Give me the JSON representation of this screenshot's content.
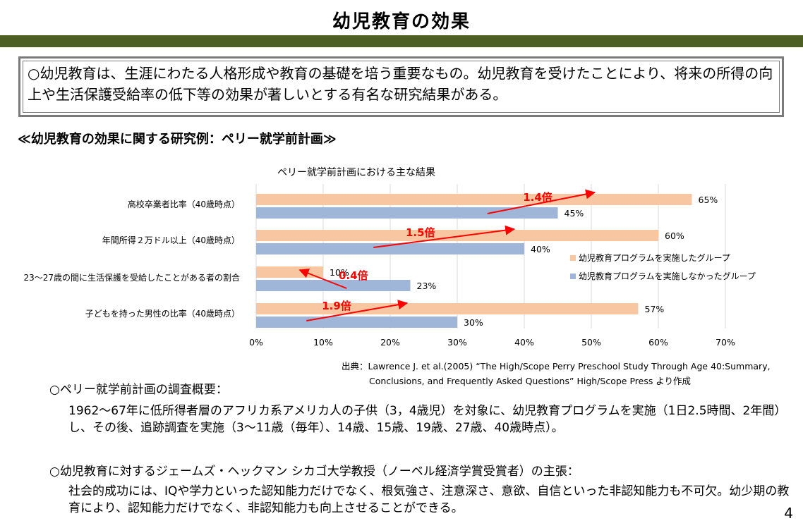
{
  "page": {
    "title": "幼児教育の効果",
    "summary": "○幼児教育は、生涯にわたる人格形成や教育の基礎を培う重要なもの。幼児教育を受けたことにより、将来の所得の向上や生活保護受給率の低下等の効果が著しいとする有名な研究結果がある。",
    "subheading": "≪幼児教育の効果に関する研究例：ペリー就学前計画≫",
    "source_line1": "出典：Lawrence J. et al.(2005) “The High/Scope Perry Preschool Study Through Age 40:Summary,",
    "source_line2": "Conclusions, and Frequently Asked Questions” High/Scope Press  より作成",
    "note1_head": "○ペリー就学前計画の調査概要：",
    "note1_body": "1962～67年に低所得者層のアフリカ系アメリカ人の子供（3，4歳児）を対象に、幼児教育プログラムを実施（1日2.5時間、2年間）し、その後、追跡調査を実施（3～11歳（毎年）、14歳、15歳、19歳、27歳、40歳時点）。",
    "note2_head": "○幼児教育に対するジェームズ・ヘックマン シカゴ大学教授（ノーベル経済学賞受賞者）の主張：",
    "note2_body": "社会的成功には、IQや学力といった認知能力だけでなく、根気強さ、注意深さ、意欲、自信といった非認知能力も不可欠。幼少期の教育により、認知能力だけでなく、非認知能力も向上させることができる。",
    "page_number": "4"
  },
  "chart_data": {
    "type": "bar",
    "orientation": "horizontal",
    "title": "ペリー就学前計画における主な結果",
    "categories": [
      "高校卒業者比率（40歳時点）",
      "年間所得２万ドル以上（40歳時点）",
      "23～27歳の間に生活保護を受給したことがある者の割合",
      "子どもを持った男性の比率（40歳時点）"
    ],
    "series": [
      {
        "name": "幼児教育プログラムを実施したグループ",
        "values": [
          65,
          60,
          10,
          57
        ],
        "labels": [
          "65%",
          "60%",
          "10%",
          "57%"
        ],
        "color": "#f8c6a0"
      },
      {
        "name": "幼児教育プログラムを実施しなかったグループ",
        "values": [
          45,
          40,
          23,
          30
        ],
        "labels": [
          "45%",
          "40%",
          "23%",
          "30%"
        ],
        "color": "#9fb6d9"
      }
    ],
    "ratio_annotations": [
      "1.4倍",
      "1.5倍",
      "0.4倍",
      "1.9倍"
    ],
    "annotation_color": "#ff0000",
    "xlim": [
      0,
      70
    ],
    "xticks": [
      "0%",
      "10%",
      "20%",
      "30%",
      "40%",
      "50%",
      "60%",
      "70%"
    ],
    "grid": "vertical",
    "legend_position": "right"
  }
}
